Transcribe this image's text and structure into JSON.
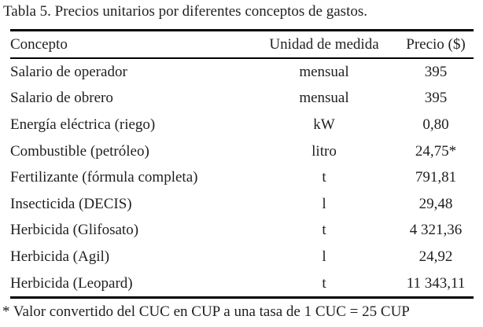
{
  "title": "Tabla 5. Precios unitarios por diferentes conceptos de gastos.",
  "table": {
    "columns": [
      "Concepto",
      "Unidad de medida",
      "Precio ($)"
    ],
    "rows": [
      {
        "concepto": "Salario de operador",
        "unidad": "mensual",
        "precio": "395"
      },
      {
        "concepto": "Salario de obrero",
        "unidad": "mensual",
        "precio": "395"
      },
      {
        "concepto": "Energía eléctrica (riego)",
        "unidad": "kW",
        "precio": "0,80"
      },
      {
        "concepto": "Combustible (petróleo)",
        "unidad": "litro",
        "precio": "24,75*"
      },
      {
        "concepto": "Fertilizante (fórmula completa)",
        "unidad": "t",
        "precio": "791,81"
      },
      {
        "concepto": "Insecticida (DECIS)",
        "unidad": "l",
        "precio": "29,48"
      },
      {
        "concepto": "Herbicida (Glifosato)",
        "unidad": "t",
        "precio": "4 321,36"
      },
      {
        "concepto": "Herbicida (Agil)",
        "unidad": "l",
        "precio": "24,92"
      },
      {
        "concepto": "Herbicida (Leopard)",
        "unidad": "t",
        "precio": "11 343,11"
      }
    ]
  },
  "footnote": "* Valor convertido del CUC en CUP a una tasa de 1 CUC = 25 CUP",
  "colors": {
    "background": "#ffffff",
    "text": "#1f1f1f",
    "rule": "#000000"
  }
}
